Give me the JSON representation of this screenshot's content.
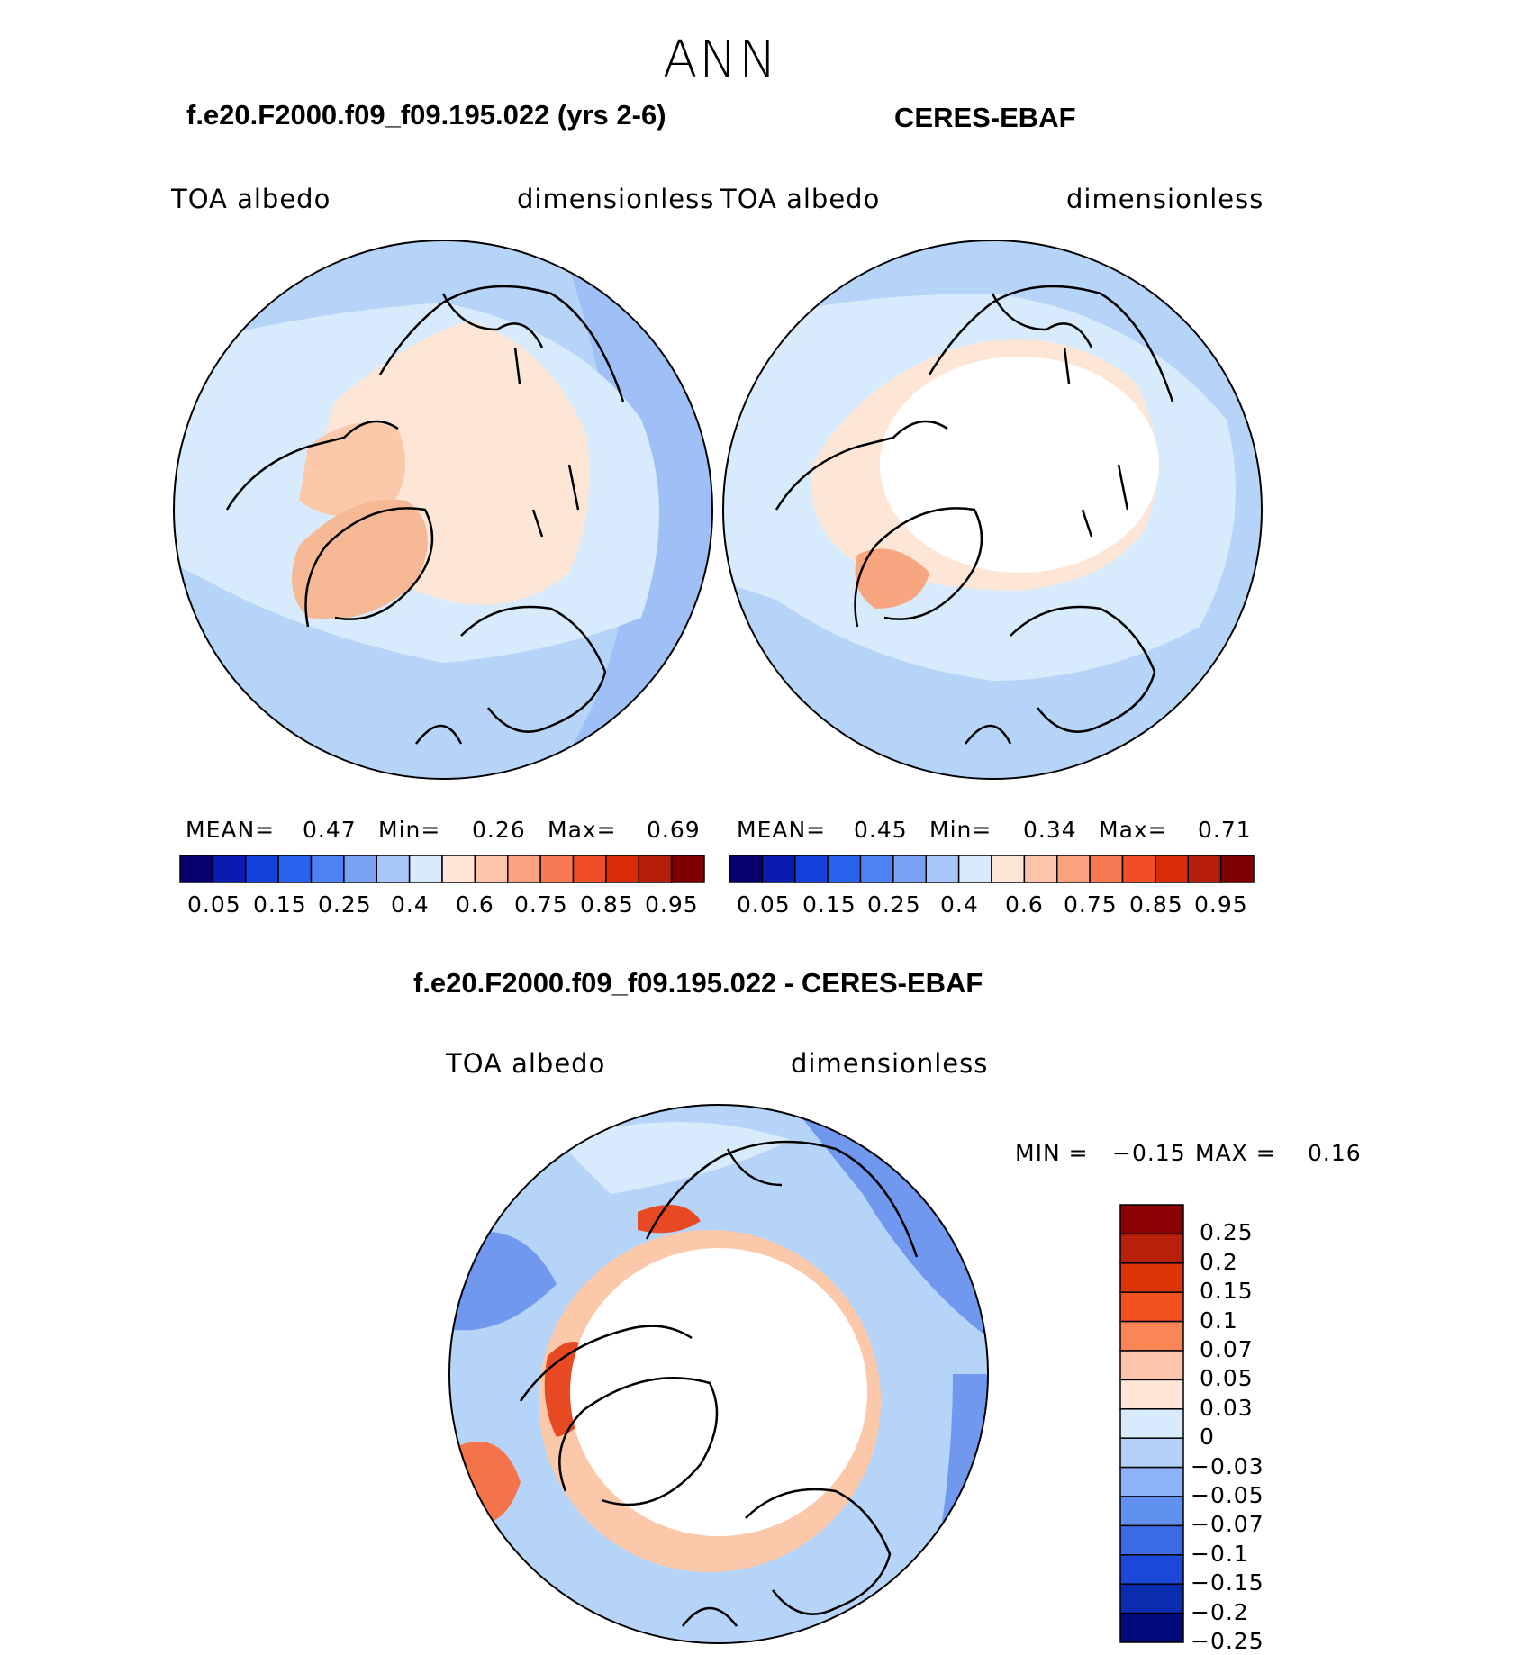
{
  "main_title": "ANN",
  "panels": [
    {
      "title": "f.e20.F2000.f09_f09.195.022 (yrs 2-6)",
      "left_label": "TOA  albedo",
      "right_label": "dimensionless",
      "stats": {
        "mean_label": "MEAN=",
        "mean": "0.47",
        "min_label": "Min=",
        "min": "0.26",
        "max_label": "Max=",
        "max": "0.69"
      }
    },
    {
      "title": "CERES-EBAF",
      "left_label": "TOA  albedo",
      "right_label": "dimensionless",
      "stats": {
        "mean_label": "MEAN=",
        "mean": "0.45",
        "min_label": "Min=",
        "min": "0.34",
        "max_label": "Max=",
        "max": "0.71"
      }
    }
  ],
  "diff_panel": {
    "title": "f.e20.F2000.f09_f09.195.022 - CERES-EBAF",
    "left_label": "TOA  albedo",
    "right_label": "dimensionless",
    "stats": {
      "min_label": "MIN =",
      "min": "−0.15",
      "max_label": "MAX =",
      "max": "0.16"
    }
  },
  "colorbar_top": {
    "colors": [
      "#08006e",
      "#0a1cb0",
      "#1240dc",
      "#2a62f0",
      "#4c82f4",
      "#7aa2f4",
      "#a8c6fa",
      "#d8ebfc",
      "#fde6d6",
      "#fcc4a8",
      "#fba27e",
      "#f77a52",
      "#f04e26",
      "#db2c0a",
      "#b41e0a",
      "#7e0000"
    ],
    "tick_labels": [
      "0.05",
      "0.15",
      "0.25",
      "0.4",
      "0.6",
      "0.75",
      "0.85",
      "0.95"
    ]
  },
  "colorbar_diff": {
    "colors_top_to_bottom": [
      "#8b0000",
      "#b8200a",
      "#dc3508",
      "#f5511e",
      "#fa8556",
      "#fcc4a8",
      "#fde6d6",
      "#d8ebfc",
      "#b4d0fa",
      "#8eb2f6",
      "#6090f0",
      "#3b6ae6",
      "#1c48d8",
      "#0c2cb0",
      "#000a78"
    ],
    "tick_labels": [
      "0.25",
      "0.2",
      "0.15",
      "0.1",
      "0.07",
      "0.05",
      "0.03",
      "0",
      "−0.03",
      "−0.05",
      "−0.07",
      "−0.1",
      "−0.15",
      "−0.2",
      "−0.25"
    ]
  },
  "map_colors": {
    "ocean_blue": "#b6d3f8",
    "mid_blue": "#9fc0f6",
    "dark_blue": "#6f98ee",
    "pale_blue": "#d8ebfc",
    "pale_peach": "#fde6d6",
    "peach": "#fbc9aa",
    "orange": "#f5734a",
    "red_orange": "#e74a22",
    "white": "#ffffff"
  }
}
